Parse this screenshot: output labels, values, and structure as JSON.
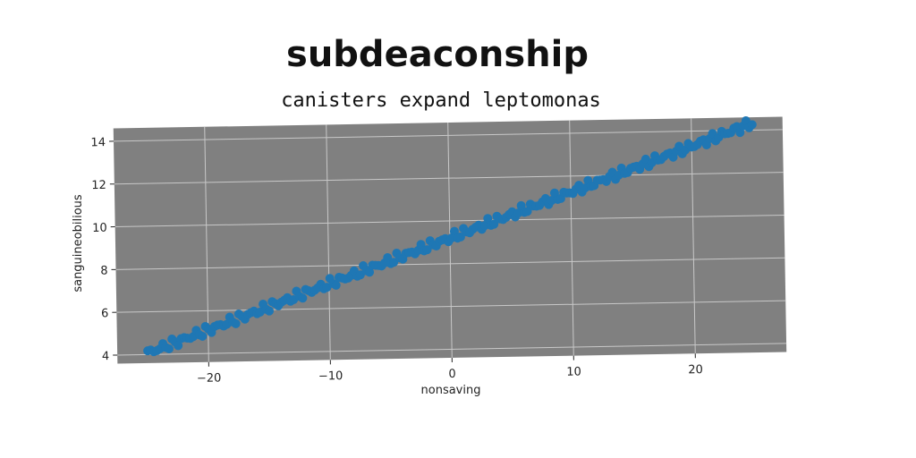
{
  "chart_data": {
    "type": "scatter",
    "title": "subdeaconship",
    "subtitle": "canisters expand leptomonas",
    "xlabel": "nonsaving",
    "ylabel": "sanguineobilious",
    "xlim": [
      -27.5,
      27.5
    ],
    "ylim": [
      3.6,
      14.6
    ],
    "xticks": [
      -20,
      -10,
      0,
      10,
      20
    ],
    "xtick_labels": [
      "−20",
      "−10",
      "0",
      "10",
      "20"
    ],
    "yticks": [
      4,
      6,
      8,
      10,
      12,
      14
    ],
    "ytick_labels": [
      "4",
      "6",
      "8",
      "10",
      "12",
      "14"
    ],
    "grid": true,
    "series": [
      {
        "color": "#1f77b4",
        "x_range": [
          -25,
          25
        ],
        "point_count": 200,
        "slope": 0.205,
        "intercept": 9.2
      }
    ]
  },
  "colors": {
    "plot_background": "#808080",
    "grid": "#c8c8c8",
    "marker": "#1f77b4"
  }
}
